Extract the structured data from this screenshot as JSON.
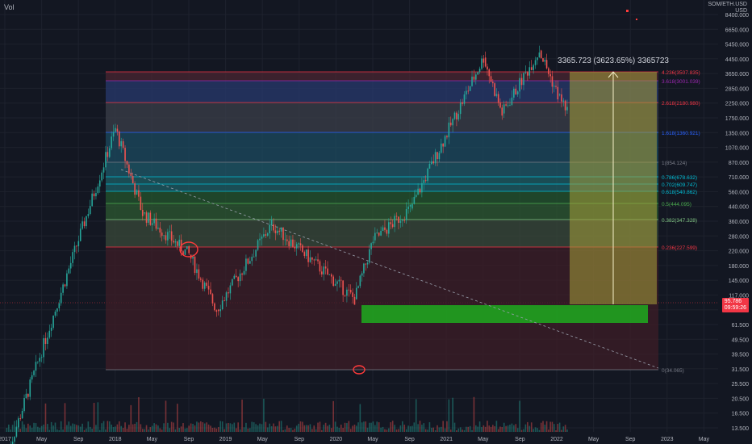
{
  "header": {
    "vol_label": "Vol",
    "price_unit_top": "SOM/ETH.USD",
    "price_unit": "USD"
  },
  "measure": {
    "label": "3365.723 (3623.65%) 3365723"
  },
  "last_price": {
    "price": "95.786",
    "countdown": "09:59:26"
  },
  "colors": {
    "background": "#131722",
    "candle_up": "#26a69a",
    "candle_down": "#ef5350",
    "support_zone": "#1fa31f",
    "target_zone": "#a8a13a",
    "marker": "#ff3b3b",
    "last_price_badge": "#f23645"
  },
  "chart_data": {
    "type": "candlestick",
    "price_scale": "log",
    "x_tick_labels": [
      "2017",
      "May",
      "Sep",
      "2018",
      "May",
      "Sep",
      "2019",
      "May",
      "Sep",
      "2020",
      "May",
      "Sep",
      "2021",
      "May",
      "Sep",
      "2022",
      "May",
      "Sep",
      "2023",
      "May"
    ],
    "y_tick_labels": [
      "8400.000",
      "6650.000",
      "5450.000",
      "4450.000",
      "3650.000",
      "2850.000",
      "2250.000",
      "1750.000",
      "1350.000",
      "1070.000",
      "870.000",
      "710.000",
      "560.000",
      "440.000",
      "360.000",
      "280.000",
      "220.000",
      "180.000",
      "145.000",
      "117.000",
      "75.500",
      "61.500",
      "49.500",
      "39.500",
      "31.500",
      "25.500",
      "20.500",
      "16.500",
      "13.500"
    ],
    "fib_levels": [
      {
        "ratio": "4.236",
        "value": "3507.835",
        "color": "#f23645"
      },
      {
        "ratio": "3.618",
        "value": "3001.039",
        "color": "#9c27b0"
      },
      {
        "ratio": "2.618",
        "value": "2180.980",
        "color": "#f23645"
      },
      {
        "ratio": "1.618",
        "value": "1360.921",
        "color": "#2962ff"
      },
      {
        "ratio": "1",
        "value": "854.124",
        "color": "#787b86"
      },
      {
        "ratio": "0.786",
        "value": "678.632",
        "color": "#00bcd4"
      },
      {
        "ratio": "0.702",
        "value": "609.747",
        "color": "#00bcd4"
      },
      {
        "ratio": "0.618",
        "value": "540.862",
        "color": "#00bcd4"
      },
      {
        "ratio": "0.5",
        "value": "444.095",
        "color": "#4caf50"
      },
      {
        "ratio": "0.382",
        "value": "347.328",
        "color": "#81c784"
      },
      {
        "ratio": "0.236",
        "value": "227.599",
        "color": "#f23645"
      },
      {
        "ratio": "0",
        "value": "34.065",
        "color": "#787b86"
      }
    ],
    "key_points": [
      {
        "date": "2017-01",
        "price": 8
      },
      {
        "date": "2018-01",
        "price": 1420
      },
      {
        "date": "2018-04",
        "price": 380
      },
      {
        "date": "2018-09",
        "price": 200
      },
      {
        "date": "2018-12",
        "price": 85
      },
      {
        "date": "2019-06",
        "price": 320
      },
      {
        "date": "2020-03",
        "price": 100
      },
      {
        "date": "2020-05",
        "price": 250
      },
      {
        "date": "2020-09",
        "price": 410
      },
      {
        "date": "2021-05",
        "price": 4300
      },
      {
        "date": "2021-07",
        "price": 1800
      },
      {
        "date": "2021-11",
        "price": 4800
      },
      {
        "date": "2022-01",
        "price": 2400
      },
      {
        "date": "2022-02",
        "price": 1900
      }
    ]
  }
}
